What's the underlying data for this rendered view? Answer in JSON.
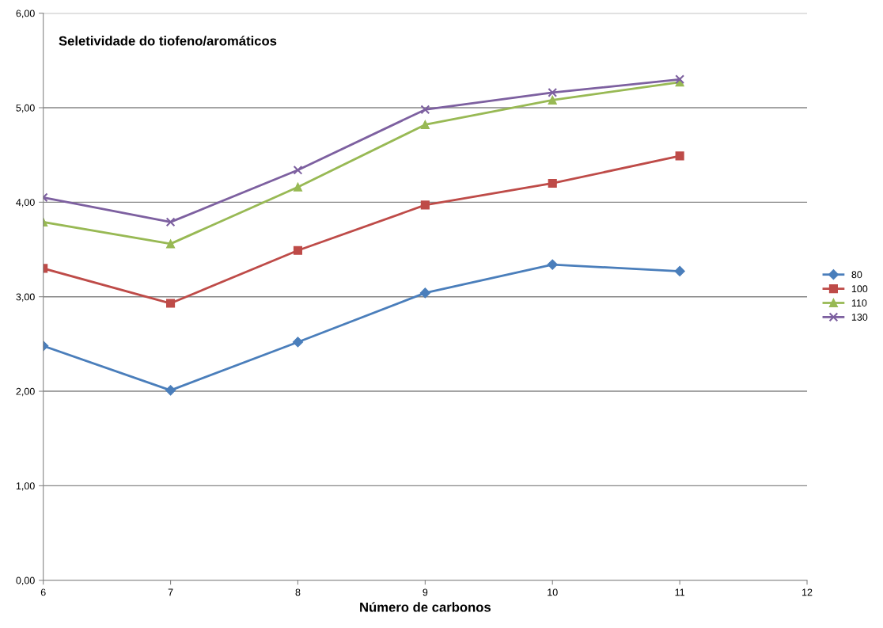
{
  "chart_data": {
    "type": "line",
    "title": "Seletividade do tiofeno/aromáticos",
    "xlabel": "Número de carbonos",
    "x": [
      6,
      7,
      8,
      9,
      10,
      11
    ],
    "series": [
      {
        "name": "80",
        "color": "#4a7ebb",
        "marker": "diamond",
        "values": [
          2.48,
          2.01,
          2.52,
          3.04,
          3.34,
          3.27
        ]
      },
      {
        "name": "100",
        "color": "#be4b48",
        "marker": "square",
        "values": [
          3.3,
          2.93,
          3.49,
          3.97,
          4.2,
          4.49
        ]
      },
      {
        "name": "110",
        "color": "#98b954",
        "marker": "triangle",
        "values": [
          3.79,
          3.56,
          4.16,
          4.82,
          5.08,
          5.27
        ]
      },
      {
        "name": "130",
        "color": "#7d60a0",
        "marker": "cross",
        "values": [
          4.05,
          3.79,
          4.34,
          4.98,
          5.16,
          5.3
        ]
      }
    ],
    "xlim": [
      6,
      12
    ],
    "xticks": [
      6,
      7,
      8,
      9,
      10,
      11,
      12
    ],
    "ylim": [
      0,
      6
    ],
    "yticks": [
      {
        "value": 0,
        "label": "0,00"
      },
      {
        "value": 1,
        "label": "1,00"
      },
      {
        "value": 2,
        "label": "2,00"
      },
      {
        "value": 3,
        "label": "3,00"
      },
      {
        "value": 4,
        "label": "4,00"
      },
      {
        "value": 5,
        "label": "5,00"
      },
      {
        "value": 6,
        "label": "6,00"
      }
    ],
    "grid": "y",
    "legend": "right",
    "line_style": "solid"
  }
}
